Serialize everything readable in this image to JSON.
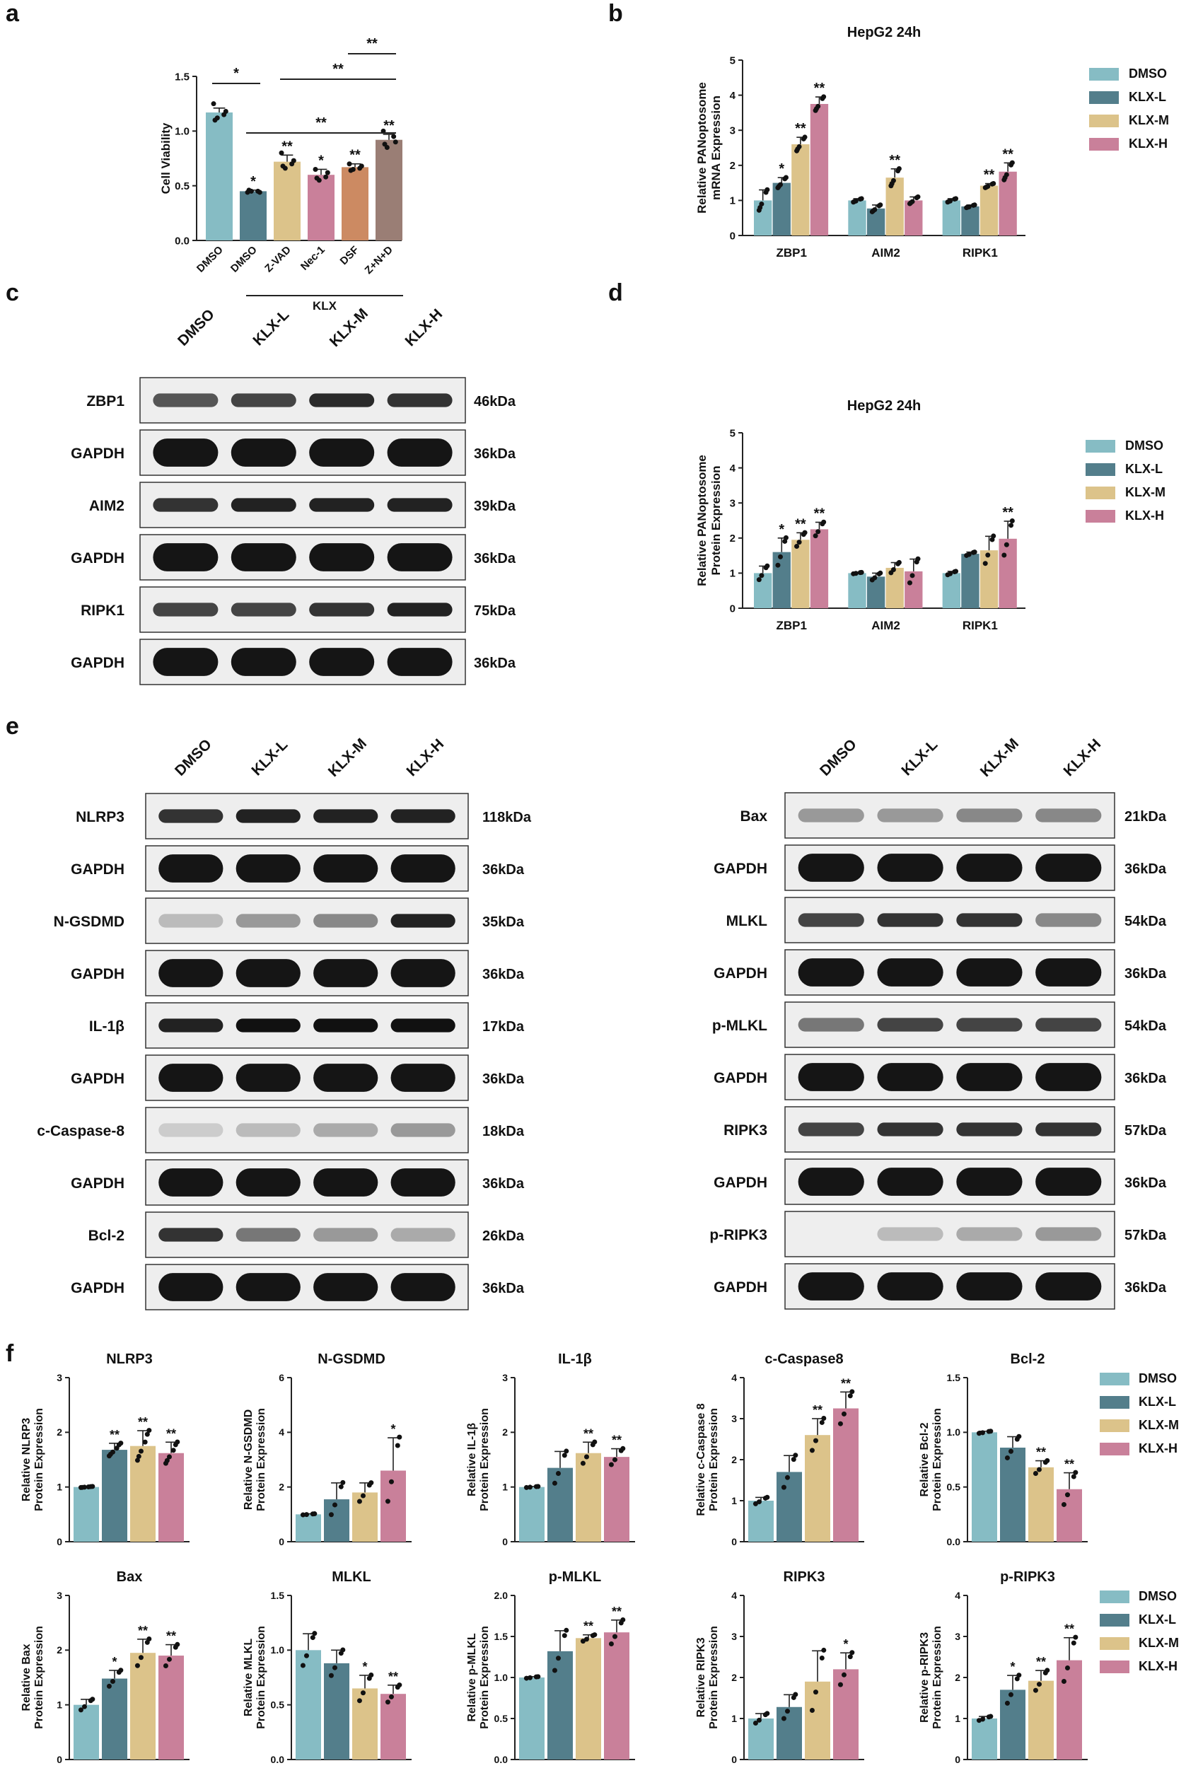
{
  "colors": {
    "DMSO": "#86bcc4",
    "KLX-L": "#537e8b",
    "KLX-M": "#dcc38a",
    "KLX-H": "#c9809a",
    "A4": "#cc8a62",
    "A5": "#9a7e75"
  },
  "legend_labels": [
    "DMSO",
    "KLX-L",
    "KLX-M",
    "KLX-H"
  ],
  "panel_labels": [
    "a",
    "b",
    "c",
    "d",
    "e",
    "f"
  ],
  "panel_a": {
    "chart_data": {
      "type": "bar",
      "ylabel": "Cell Viability",
      "ylim": [
        0,
        1.5
      ],
      "yticks": [
        "0.0",
        "0.5",
        "1.0",
        "1.5"
      ],
      "categories": [
        "DMSO",
        "DMSO",
        "Z-VAD",
        "Nec-1",
        "DSF",
        "Z+N+D"
      ],
      "values": [
        1.17,
        0.45,
        0.72,
        0.6,
        0.67,
        0.92
      ],
      "errors": [
        0.04,
        0.01,
        0.06,
        0.05,
        0.03,
        0.05
      ],
      "points": [
        [
          1.25,
          1.15,
          1.12,
          1.18,
          1.1
        ],
        [
          0.44,
          0.45,
          0.45,
          0.44,
          0.46
        ],
        [
          0.8,
          0.7,
          0.66,
          0.73,
          0.68
        ],
        [
          0.65,
          0.58,
          0.55,
          0.62,
          0.57
        ],
        [
          0.7,
          0.66,
          0.65,
          0.68,
          0.64
        ],
        [
          1.0,
          0.95,
          0.85,
          0.9,
          0.88
        ]
      ],
      "marks": [
        "",
        "*",
        "**",
        "*",
        "**",
        "**"
      ],
      "group_label": "KLX",
      "brackets": [
        {
          "from": 0,
          "to": 1,
          "label": "*"
        },
        {
          "from": 1,
          "to": 5,
          "label": "**"
        },
        {
          "from": 2,
          "to": 5,
          "label": "**"
        },
        {
          "from": 4,
          "to": 5,
          "label": "**"
        }
      ]
    }
  },
  "panel_b": {
    "chart_data": {
      "type": "bar",
      "title": "HepG2 24h",
      "ylabel": [
        "Relative PANoptosome",
        "mRNA Expression"
      ],
      "ylim": [
        0,
        5
      ],
      "yticks": [
        "0",
        "1",
        "2",
        "3",
        "4",
        "5"
      ],
      "categories": [
        "ZBP1",
        "AIM2",
        "RIPK1"
      ],
      "series": [
        {
          "name": "DMSO",
          "values": [
            1.0,
            1.0,
            1.0
          ],
          "errors": [
            0.3,
            0.05,
            0.05
          ],
          "marks": [
            "",
            "",
            ""
          ]
        },
        {
          "name": "KLX-L",
          "values": [
            1.5,
            0.77,
            0.83
          ],
          "errors": [
            0.15,
            0.1,
            0.04
          ],
          "marks": [
            "*",
            "",
            ""
          ]
        },
        {
          "name": "KLX-M",
          "values": [
            2.6,
            1.65,
            1.42
          ],
          "errors": [
            0.2,
            0.25,
            0.06
          ],
          "marks": [
            "**",
            "**",
            "**"
          ]
        },
        {
          "name": "KLX-H",
          "values": [
            3.75,
            1.0,
            1.82
          ],
          "errors": [
            0.2,
            0.1,
            0.25
          ],
          "marks": [
            "**",
            "",
            "**"
          ]
        }
      ]
    }
  },
  "panel_c": {
    "lanes": [
      "DMSO",
      "KLX-L",
      "KLX-M",
      "KLX-H"
    ],
    "rows": [
      {
        "label": "ZBP1",
        "kda": "46kDa"
      },
      {
        "label": "GAPDH",
        "kda": "36kDa"
      },
      {
        "label": "AIM2",
        "kda": "39kDa"
      },
      {
        "label": "GAPDH",
        "kda": "36kDa"
      },
      {
        "label": "RIPK1",
        "kda": "75kDa"
      },
      {
        "label": "GAPDH",
        "kda": "36kDa"
      }
    ]
  },
  "panel_d": {
    "chart_data": {
      "type": "bar",
      "title": "HepG2 24h",
      "ylabel": [
        "Relative PANoptosome",
        "Protein Expression"
      ],
      "ylim": [
        0,
        5
      ],
      "yticks": [
        "0",
        "1",
        "2",
        "3",
        "4",
        "5"
      ],
      "categories": [
        "ZBP1",
        "AIM2",
        "RIPK1"
      ],
      "series": [
        {
          "name": "DMSO",
          "values": [
            1.0,
            1.0,
            1.0
          ],
          "errors": [
            0.2,
            0.02,
            0.05
          ],
          "marks": [
            "",
            "",
            ""
          ]
        },
        {
          "name": "KLX-L",
          "values": [
            1.6,
            0.9,
            1.55
          ],
          "errors": [
            0.4,
            0.1,
            0.05
          ],
          "marks": [
            "*",
            "",
            ""
          ]
        },
        {
          "name": "KLX-M",
          "values": [
            1.95,
            1.15,
            1.65
          ],
          "errors": [
            0.2,
            0.15,
            0.4
          ],
          "marks": [
            "**",
            "",
            ""
          ]
        },
        {
          "name": "KLX-H",
          "values": [
            2.25,
            1.05,
            1.98
          ],
          "errors": [
            0.2,
            0.35,
            0.5
          ],
          "marks": [
            "**",
            "",
            "**"
          ]
        }
      ]
    }
  },
  "panel_e": {
    "lanes": [
      "DMSO",
      "KLX-L",
      "KLX-M",
      "KLX-H"
    ],
    "left": [
      {
        "label": "NLRP3",
        "kda": "118kDa"
      },
      {
        "label": "GAPDH",
        "kda": "36kDa"
      },
      {
        "label": "N-GSDMD",
        "kda": "35kDa"
      },
      {
        "label": "GAPDH",
        "kda": "36kDa"
      },
      {
        "label": "IL-1β",
        "kda": "17kDa"
      },
      {
        "label": "GAPDH",
        "kda": "36kDa"
      },
      {
        "label": "c-Caspase-8",
        "kda": "18kDa"
      },
      {
        "label": "GAPDH",
        "kda": "36kDa"
      },
      {
        "label": "Bcl-2",
        "kda": "26kDa"
      },
      {
        "label": "GAPDH",
        "kda": "36kDa"
      }
    ],
    "right": [
      {
        "label": "Bax",
        "kda": "21kDa"
      },
      {
        "label": "GAPDH",
        "kda": "36kDa"
      },
      {
        "label": "MLKL",
        "kda": "54kDa"
      },
      {
        "label": "GAPDH",
        "kda": "36kDa"
      },
      {
        "label": "p-MLKL",
        "kda": "54kDa"
      },
      {
        "label": "GAPDH",
        "kda": "36kDa"
      },
      {
        "label": "RIPK3",
        "kda": "57kDa"
      },
      {
        "label": "GAPDH",
        "kda": "36kDa"
      },
      {
        "label": "p-RIPK3",
        "kda": "57kDa"
      },
      {
        "label": "GAPDH",
        "kda": "36kDa"
      }
    ]
  },
  "panel_f": {
    "chart_data": [
      {
        "type": "bar",
        "title": "NLRP3",
        "ylabel": [
          "Relative NLRP3",
          "Protein Expression"
        ],
        "ylim": [
          0,
          3
        ],
        "yticks": [
          "0",
          "1",
          "2",
          "3"
        ],
        "categories": [
          "DMSO",
          "KLX-L",
          "KLX-M",
          "KLX-H"
        ],
        "values": [
          1.0,
          1.68,
          1.75,
          1.62
        ],
        "errors": [
          0.01,
          0.12,
          0.28,
          0.2
        ],
        "marks": [
          "",
          "**",
          "**",
          "**"
        ],
        "n": 6
      },
      {
        "type": "bar",
        "title": "N-GSDMD",
        "ylabel": [
          "Relative N-GSDMD",
          "Protein Expression"
        ],
        "ylim": [
          0,
          6
        ],
        "yticks": [
          "0",
          "2",
          "4",
          "6"
        ],
        "categories": [
          "DMSO",
          "KLX-L",
          "KLX-M",
          "KLX-H"
        ],
        "values": [
          1.0,
          1.55,
          1.8,
          2.6
        ],
        "errors": [
          0.02,
          0.6,
          0.35,
          1.2
        ],
        "marks": [
          "",
          "",
          "",
          "*"
        ],
        "n": 4
      },
      {
        "type": "bar",
        "title": "IL-1β",
        "ylabel": [
          "Relative IL-1β",
          "Protein Expression"
        ],
        "ylim": [
          0,
          3
        ],
        "yticks": [
          "0",
          "1",
          "2",
          "3"
        ],
        "categories": [
          "DMSO",
          "KLX-L",
          "KLX-M",
          "KLX-H"
        ],
        "values": [
          1.0,
          1.35,
          1.62,
          1.55
        ],
        "errors": [
          0.01,
          0.3,
          0.2,
          0.15
        ],
        "marks": [
          "",
          "",
          "**",
          "**"
        ],
        "n": 4
      },
      {
        "type": "bar",
        "title": "c-Caspase8",
        "ylabel": [
          "Relative c-Caspase 8",
          "Protein Expression"
        ],
        "ylim": [
          0,
          4
        ],
        "yticks": [
          "0",
          "1",
          "2",
          "3",
          "4"
        ],
        "categories": [
          "DMSO",
          "KLX-L",
          "KLX-M",
          "KLX-H"
        ],
        "values": [
          1.0,
          1.7,
          2.6,
          3.25
        ],
        "errors": [
          0.08,
          0.4,
          0.4,
          0.4
        ],
        "marks": [
          "",
          "",
          "**",
          "**"
        ],
        "n": 4
      },
      {
        "type": "bar",
        "title": "Bcl-2",
        "ylabel": [
          "Relative Bcl-2",
          "Protein Expression"
        ],
        "ylim": [
          0,
          1.5
        ],
        "yticks": [
          "0.0",
          "0.5",
          "1.0",
          "1.5"
        ],
        "categories": [
          "DMSO",
          "KLX-L",
          "KLX-M",
          "KLX-H"
        ],
        "values": [
          1.0,
          0.86,
          0.68,
          0.48
        ],
        "errors": [
          0.01,
          0.1,
          0.06,
          0.15
        ],
        "marks": [
          "",
          "",
          "**",
          "**"
        ],
        "n": 4
      },
      {
        "type": "bar",
        "title": "Bax",
        "ylabel": [
          "Relative Bax",
          "Protein Expression"
        ],
        "ylim": [
          0,
          3
        ],
        "yticks": [
          "0",
          "1",
          "2",
          "3"
        ],
        "categories": [
          "DMSO",
          "KLX-L",
          "KLX-M",
          "KLX-H"
        ],
        "values": [
          1.0,
          1.48,
          1.95,
          1.9
        ],
        "errors": [
          0.1,
          0.15,
          0.25,
          0.2
        ],
        "marks": [
          "",
          "*",
          "**",
          "**"
        ],
        "n": 4
      },
      {
        "type": "bar",
        "title": "MLKL",
        "ylabel": [
          "Relative MLKL",
          "Protein Expression"
        ],
        "ylim": [
          0,
          1.5
        ],
        "yticks": [
          "0.0",
          "0.5",
          "1.0",
          "1.5"
        ],
        "categories": [
          "DMSO",
          "KLX-L",
          "KLX-M",
          "KLX-H"
        ],
        "values": [
          1.0,
          0.88,
          0.65,
          0.6
        ],
        "errors": [
          0.15,
          0.12,
          0.12,
          0.08
        ],
        "marks": [
          "",
          "",
          "*",
          "**"
        ],
        "n": 4
      },
      {
        "type": "bar",
        "title": "p-MLKL",
        "ylabel": [
          "Relative p-MLKL",
          "Protein Expression"
        ],
        "ylim": [
          0,
          2
        ],
        "yticks": [
          "0.0",
          "0.5",
          "1.0",
          "1.5",
          "2.0"
        ],
        "categories": [
          "DMSO",
          "KLX-L",
          "KLX-M",
          "KLX-H"
        ],
        "values": [
          1.0,
          1.32,
          1.48,
          1.55
        ],
        "errors": [
          0.01,
          0.25,
          0.04,
          0.15
        ],
        "marks": [
          "",
          "",
          "**",
          "**"
        ],
        "n": 4
      },
      {
        "type": "bar",
        "title": "RIPK3",
        "ylabel": [
          "Relative RIPK3",
          "Protein Expression"
        ],
        "ylim": [
          0,
          4
        ],
        "yticks": [
          "0",
          "1",
          "2",
          "3",
          "4"
        ],
        "categories": [
          "DMSO",
          "KLX-L",
          "KLX-M",
          "KLX-H"
        ],
        "values": [
          1.0,
          1.28,
          1.9,
          2.2
        ],
        "errors": [
          0.12,
          0.3,
          0.75,
          0.4
        ],
        "marks": [
          "",
          "",
          "",
          "*"
        ],
        "n": 4
      },
      {
        "type": "bar",
        "title": "p-RIPK3",
        "ylabel": [
          "Relative p-RIPK3",
          "Protein Expression"
        ],
        "ylim": [
          0,
          4
        ],
        "yticks": [
          "0",
          "1",
          "2",
          "3",
          "4"
        ],
        "categories": [
          "DMSO",
          "KLX-L",
          "KLX-M",
          "KLX-H"
        ],
        "values": [
          1.0,
          1.7,
          1.92,
          2.42
        ],
        "errors": [
          0.05,
          0.35,
          0.25,
          0.55
        ],
        "marks": [
          "",
          "*",
          "**",
          "**"
        ],
        "n": 4
      }
    ]
  }
}
